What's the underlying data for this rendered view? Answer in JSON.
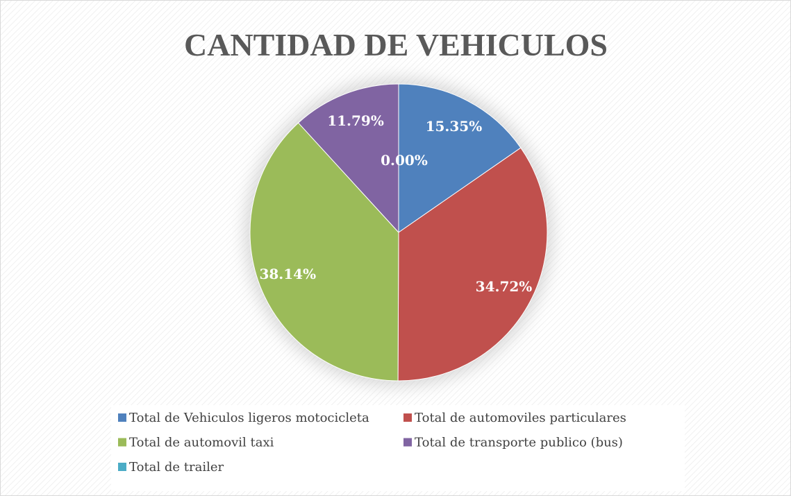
{
  "chart_data": {
    "type": "pie",
    "title": "CANTIDAD DE VEHICULOS",
    "categories": [
      "Total de Vehiculos ligeros motocicleta",
      "Total de automoviles particulares",
      "Total de automovil taxi",
      "Total de transporte publico (bus)",
      "Total de trailer"
    ],
    "values": [
      15.35,
      34.72,
      38.14,
      11.79,
      0.0
    ],
    "value_labels": [
      "15.35%",
      "34.72%",
      "38.14%",
      "11.79%",
      "0.00%"
    ],
    "colors": [
      "#4f81bd",
      "#c0504d",
      "#9bbb59",
      "#8064a2",
      "#4bacc6"
    ],
    "legend": "bottom"
  }
}
